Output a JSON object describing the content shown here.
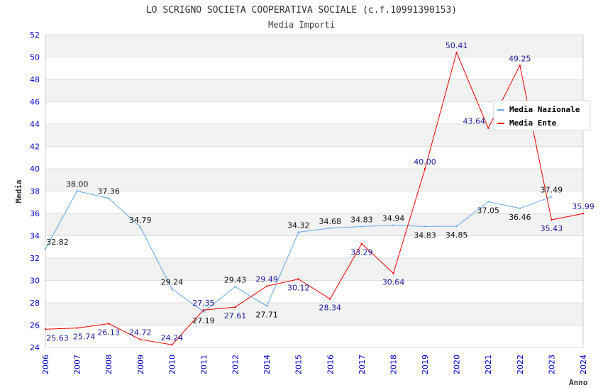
{
  "chart_data": {
    "type": "line",
    "title": "LO SCRIGNO SOCIETA COOPERATIVA SOCIALE (c.f.10991390153)",
    "subtitle": "Media Importi",
    "xlabel": "Anno",
    "ylabel": "Media",
    "ylim": [
      24,
      52
    ],
    "yticks": [
      24,
      26,
      28,
      30,
      32,
      34,
      36,
      38,
      40,
      42,
      44,
      46,
      48,
      50,
      52
    ],
    "grid": true,
    "legend_position": "top-right",
    "categories": [
      "2006",
      "2007",
      "2008",
      "2009",
      "2010",
      "2011",
      "2012",
      "2014",
      "2015",
      "2016",
      "2017",
      "2018",
      "2019",
      "2020",
      "2021",
      "2022",
      "2023",
      "2024"
    ],
    "series": [
      {
        "name": "Media Nazionale",
        "color": "#66aaee",
        "label_color": "#111111",
        "values": [
          32.82,
          38.0,
          37.36,
          34.79,
          29.24,
          27.19,
          29.43,
          27.71,
          34.32,
          34.68,
          34.83,
          34.94,
          34.83,
          34.85,
          37.05,
          36.46,
          37.49,
          null
        ],
        "labels": [
          "32.82",
          "38.00",
          "37.36",
          "34.79",
          "29.24",
          "27.19",
          "29.43",
          "27.71",
          "34.32",
          "34.68",
          "34.83",
          "34.94",
          "34.83",
          "34.85",
          "37.05",
          "36.46",
          "37.49",
          null
        ]
      },
      {
        "name": "Media Ente",
        "color": "#ee0000",
        "label_color": "#1a1a99",
        "values": [
          25.63,
          25.74,
          26.13,
          24.72,
          24.24,
          27.35,
          27.61,
          29.49,
          30.12,
          28.34,
          33.29,
          30.64,
          40.0,
          50.41,
          43.64,
          49.25,
          35.43,
          35.99
        ],
        "labels": [
          "25.63",
          "25.74",
          "26.13",
          "24.72",
          "24.24",
          "27.35",
          "27.61",
          "29.49",
          "30.12",
          "28.34",
          "33.29",
          "30.64",
          "40.00",
          "50.41",
          "43.64",
          "49.25",
          "35.43",
          "35.99"
        ]
      }
    ]
  }
}
